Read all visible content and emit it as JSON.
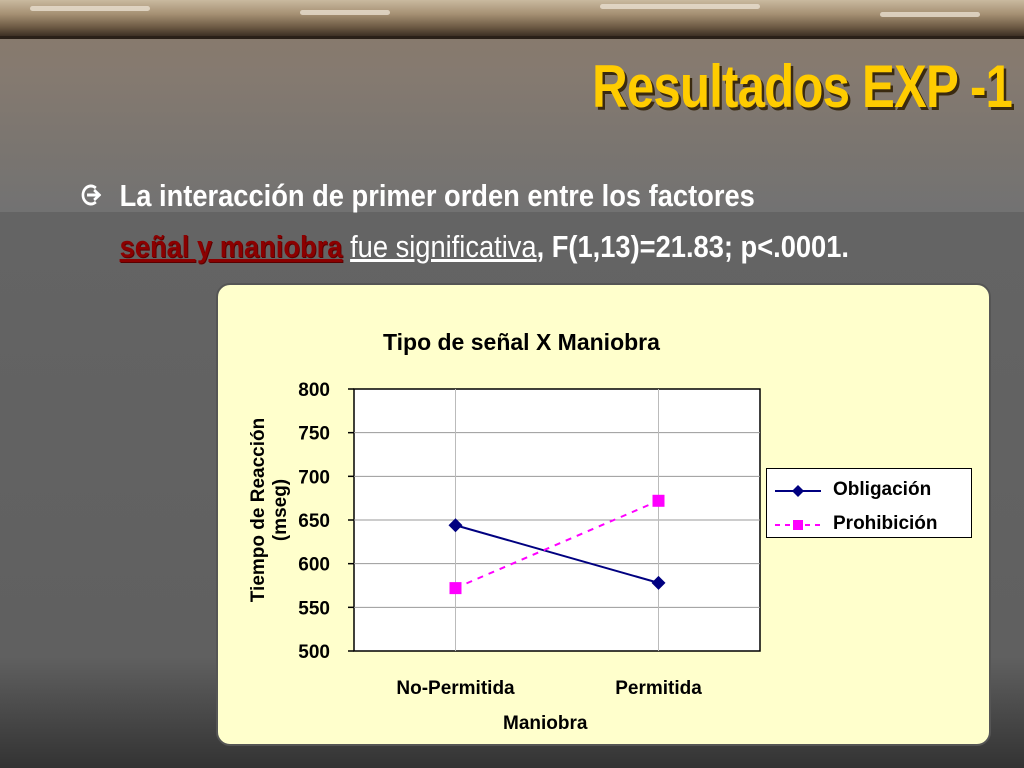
{
  "slide": {
    "title": "Resultados EXP -1",
    "bullet": {
      "line1": "La interacción de primer orden entre los factores",
      "highlight": "señal y maniobra",
      "sep": " ",
      "underlined": "fue significativa",
      "rest": ", F(1,13)=21.83; p<.0001."
    }
  },
  "colors": {
    "title": "#ffcc00",
    "highlight": "#8b0000",
    "chart_bg": "#ffffcc",
    "obligacion": "#000080",
    "prohibicion": "#ff00ff"
  },
  "icons": {
    "bullet": "arrow-circle-icon"
  },
  "chart_data": {
    "type": "line",
    "title": "Tipo de señal X Maniobra",
    "xlabel": "Maniobra",
    "ylabel": "Tiempo de Reacción (mseg)",
    "categories": [
      "No-Permitida",
      "Permitida"
    ],
    "ylim": [
      500,
      800
    ],
    "yticks": [
      "500",
      "550",
      "600",
      "650",
      "700",
      "750",
      "800"
    ],
    "grid": true,
    "legend_position": "right",
    "series": [
      {
        "name": "Obligación",
        "values": [
          644,
          578
        ],
        "color": "#000080",
        "marker": "diamond",
        "style": "solid"
      },
      {
        "name": "Prohibición",
        "values": [
          572,
          672
        ],
        "color": "#ff00ff",
        "marker": "square",
        "style": "dashed"
      }
    ]
  }
}
